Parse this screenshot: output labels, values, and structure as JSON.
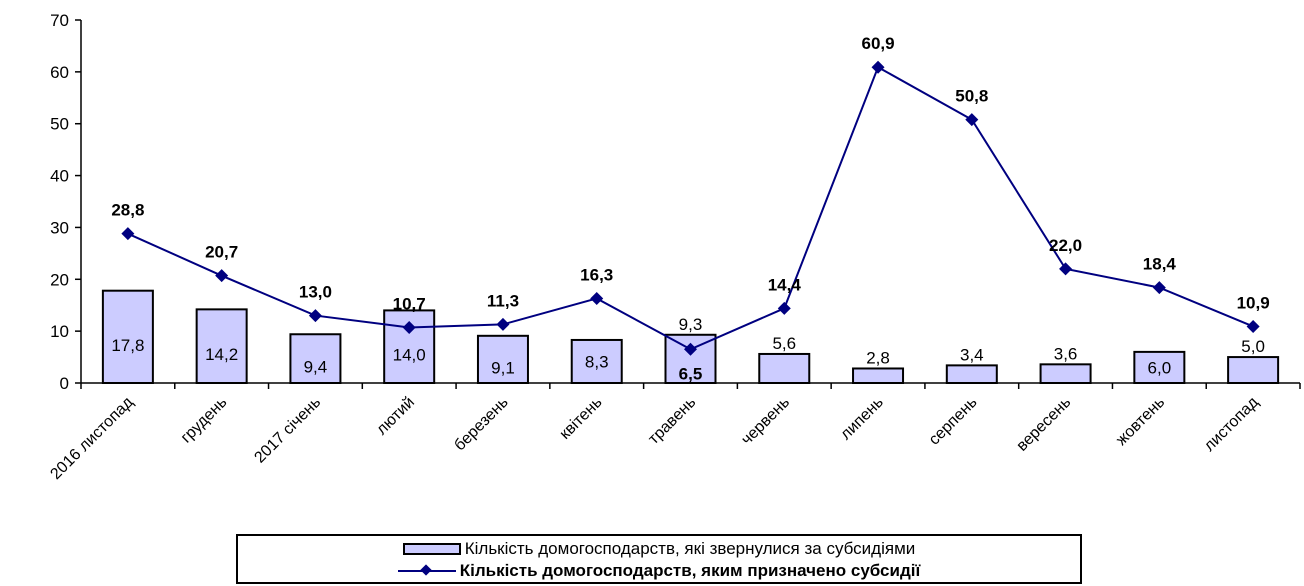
{
  "chart_data": {
    "type": "bar",
    "categories": [
      "2016 листопад",
      "грудень",
      "2017 січень",
      "лютий",
      "березень",
      "квітень",
      "травень",
      "червень",
      "липень",
      "серпень",
      "вересень",
      "жовтень",
      "листопад"
    ],
    "series": [
      {
        "name": "Кількість домогосподарств, які звернулися за субсидіями",
        "type": "bar",
        "values": [
          17.8,
          14.2,
          9.4,
          14.0,
          9.1,
          8.3,
          9.3,
          5.6,
          2.8,
          3.4,
          3.6,
          6.0,
          5.0
        ],
        "labels": [
          "17,8",
          "14,2",
          "9,4",
          "14,0",
          "9,1",
          "8,3",
          "9,3",
          "5,6",
          "2,8",
          "3,4",
          "3,6",
          "6,0",
          "5,0"
        ],
        "color": "#ccccff"
      },
      {
        "name": "Кількість домогосподарств, яким призначено субсидії",
        "type": "line",
        "values": [
          28.8,
          20.7,
          13.0,
          10.7,
          11.3,
          16.3,
          6.5,
          14.4,
          60.9,
          50.8,
          22.0,
          18.4,
          10.9
        ],
        "labels": [
          "28,8",
          "20,7",
          "13,0",
          "10,7",
          "11,3",
          "16,3",
          "6,5",
          "14,4",
          "60,9",
          "50,8",
          "22,0",
          "18,4",
          "10,9"
        ],
        "color": "#000080"
      }
    ],
    "ylim": [
      0,
      70
    ],
    "yticks": [
      0,
      10,
      20,
      30,
      40,
      50,
      60,
      70
    ],
    "grid": false,
    "legend": "bottom"
  }
}
